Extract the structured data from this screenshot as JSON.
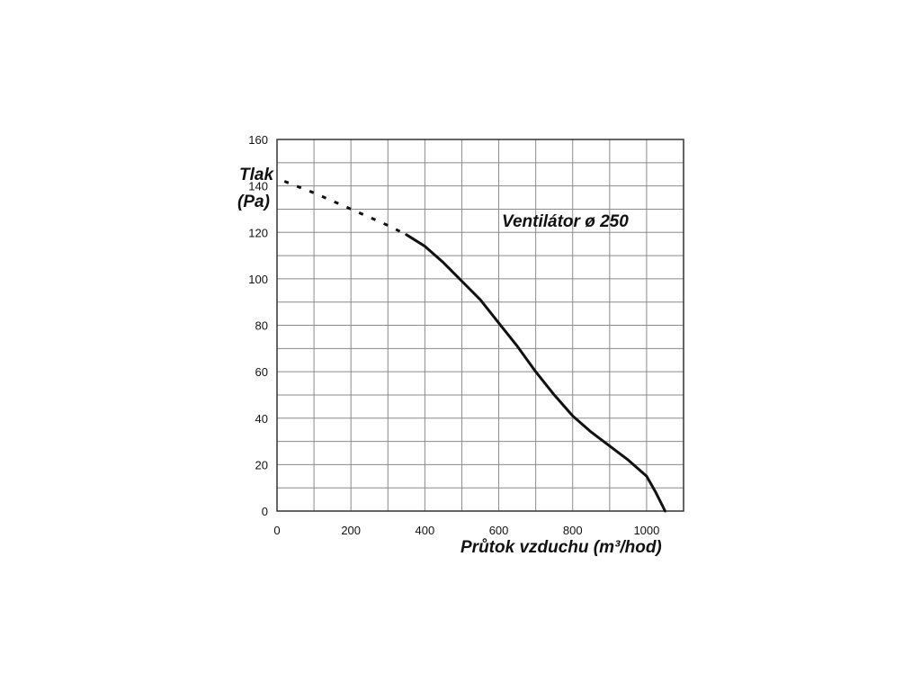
{
  "chart_data": {
    "type": "line",
    "annotation": "Ventilátor ø 250",
    "ylabel_line1": "Tlak",
    "ylabel_line2": "(Pa)",
    "xlabel": "Průtok vzduchu (m³/hod)",
    "xlim": [
      0,
      1100
    ],
    "ylim": [
      0,
      160
    ],
    "x_ticks": [
      0,
      200,
      400,
      600,
      800,
      1000
    ],
    "y_ticks": [
      0,
      20,
      40,
      60,
      80,
      100,
      120,
      140,
      160
    ],
    "grid": true,
    "series": [
      {
        "style": "dashed",
        "points": [
          [
            20,
            142
          ],
          [
            100,
            137
          ],
          [
            200,
            130
          ],
          [
            300,
            123
          ],
          [
            350,
            119
          ]
        ]
      },
      {
        "style": "solid",
        "points": [
          [
            350,
            119
          ],
          [
            400,
            114
          ],
          [
            450,
            107
          ],
          [
            500,
            99
          ],
          [
            550,
            91
          ],
          [
            600,
            81
          ],
          [
            650,
            71
          ],
          [
            700,
            60
          ],
          [
            750,
            50
          ],
          [
            800,
            41
          ],
          [
            850,
            34
          ],
          [
            900,
            28
          ],
          [
            950,
            22
          ],
          [
            1000,
            15
          ],
          [
            1025,
            8
          ],
          [
            1050,
            0
          ]
        ]
      }
    ]
  },
  "colors": {
    "curve": "#111111",
    "grid": "#8a8a8a",
    "frame": "#333333"
  }
}
